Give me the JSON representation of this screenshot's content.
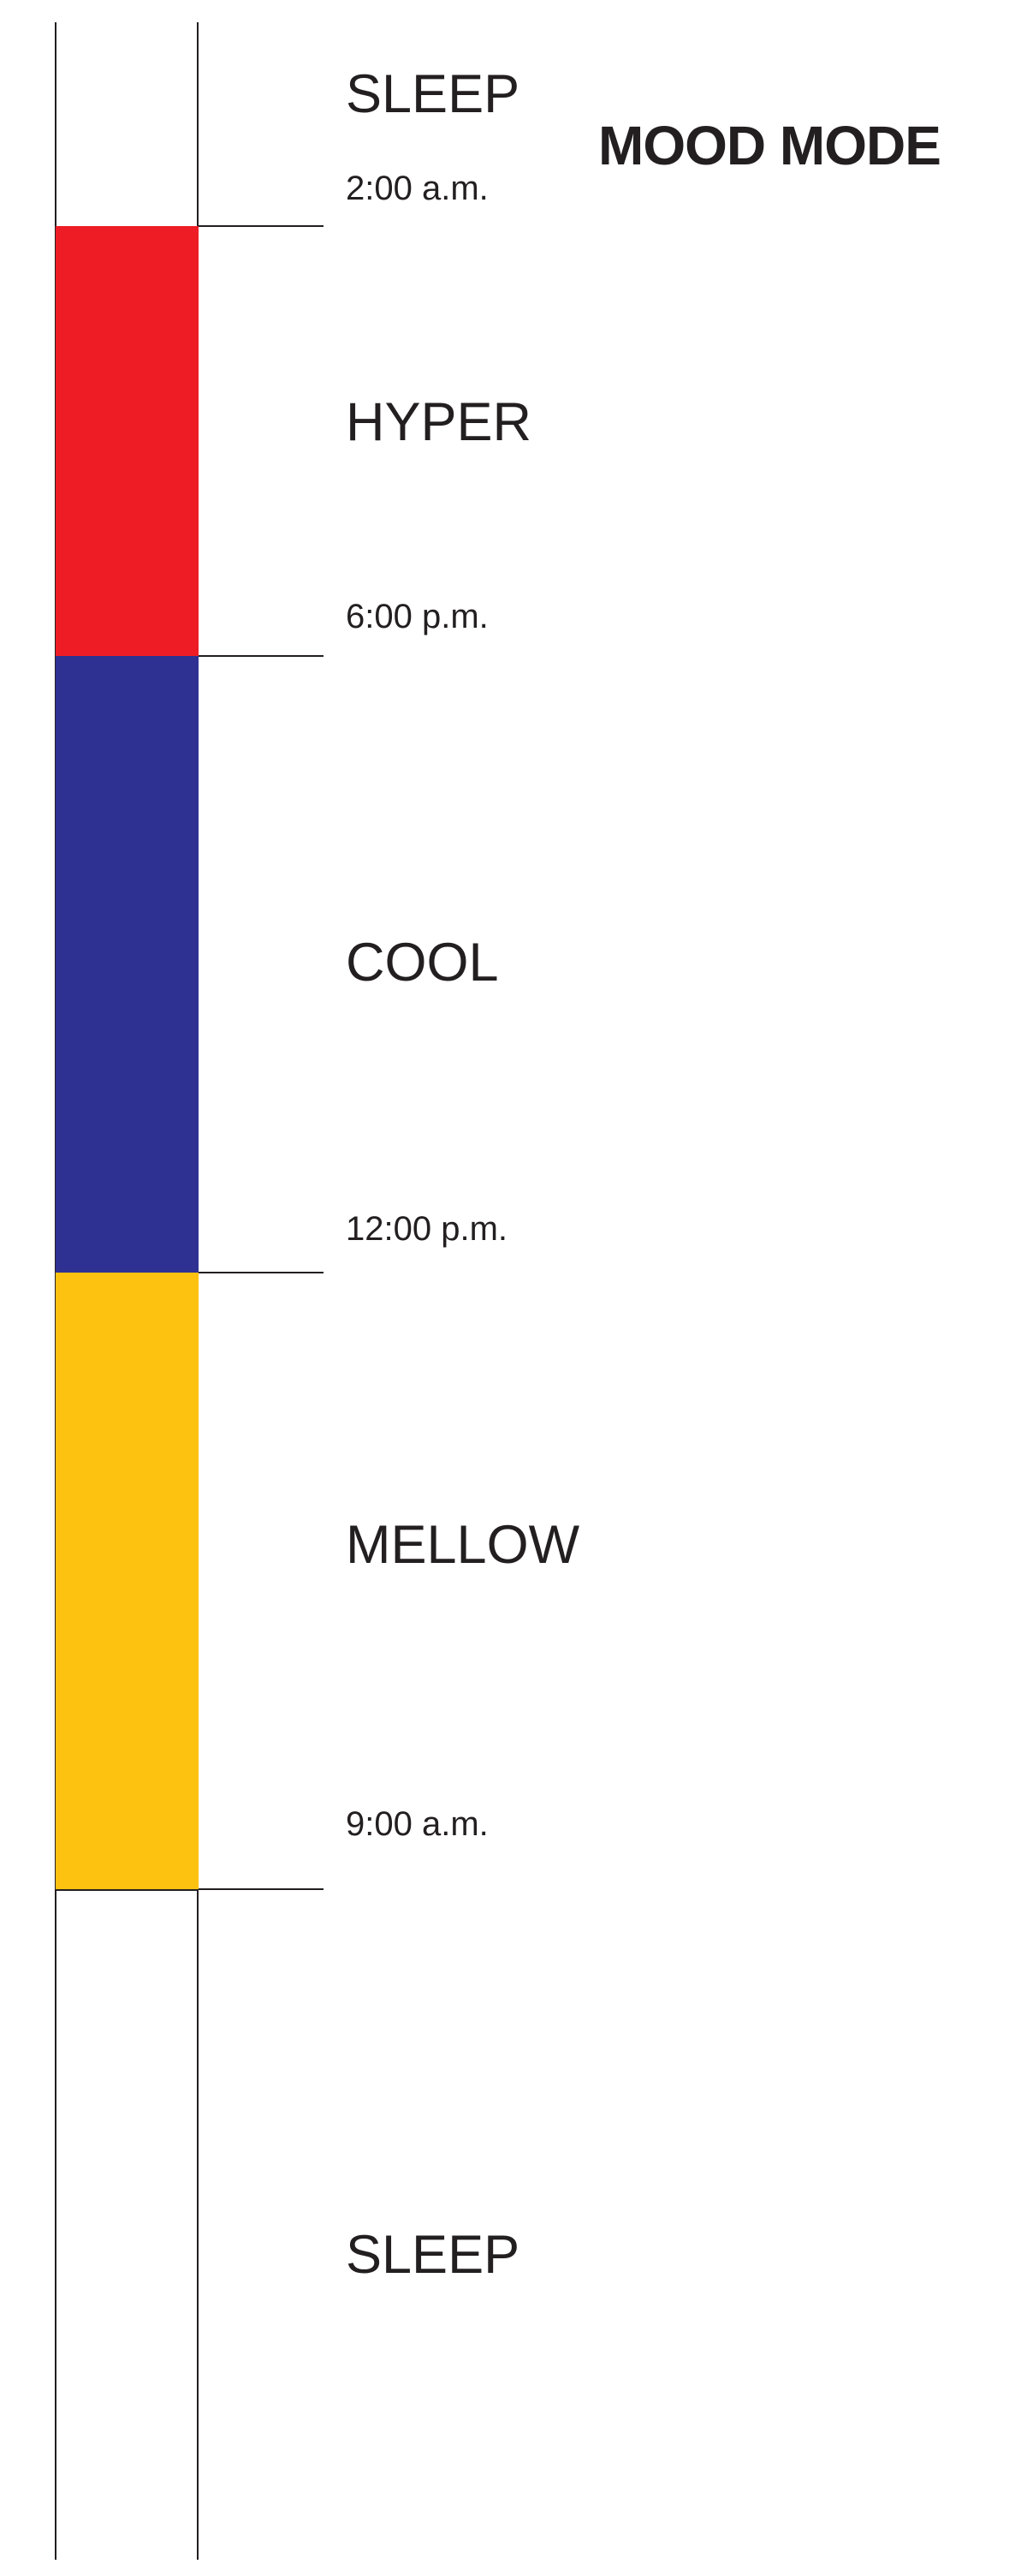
{
  "title": "MOOD MODE",
  "colors": {
    "hyper": "#ee1c25",
    "cool": "#2e3192",
    "mellow": "#fdc210",
    "line": "#231f20"
  },
  "modes": [
    {
      "label": "SLEEP",
      "time": "2:00 a.m."
    },
    {
      "label": "HYPER",
      "time": "6:00 p.m."
    },
    {
      "label": "COOL",
      "time": "12:00 p.m."
    },
    {
      "label": "MELLOW",
      "time": "9:00 a.m."
    },
    {
      "label": "SLEEP"
    }
  ]
}
